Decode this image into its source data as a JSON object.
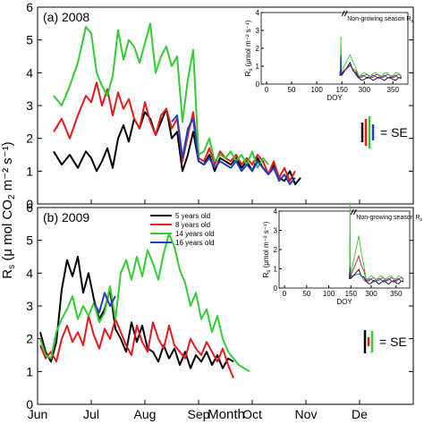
{
  "figure": {
    "y_axis_label": "R",
    "y_axis_label_sub": "s",
    "y_axis_label_rest": " (μ mol CO",
    "y_axis_label_co2sub": "2",
    "y_axis_label_end": " m⁻² s⁻¹)",
    "x_axis_label": "Month",
    "month_ticks": [
      "Jun",
      "Jul",
      "Aug",
      "Sep",
      "Oct",
      "Nov",
      "De"
    ],
    "colors": {
      "5 years old": "#000000",
      "8 years old": "#e41a1c",
      "14 years old": "#33cc33",
      "16 years old": "#1f3fbf"
    }
  },
  "chart_data": [
    {
      "type": "line",
      "panel": "(a)",
      "year": "2008",
      "x_unit": "month_index",
      "xlim": [
        0,
        7
      ],
      "ylim": [
        0,
        6
      ],
      "yticks": [
        0,
        1,
        2,
        3,
        4,
        5,
        6
      ],
      "se_label": "= SE",
      "series": [
        {
          "key": "5 years old",
          "x": [
            0.3,
            0.45,
            0.6,
            0.75,
            0.9,
            1.0,
            1.1,
            1.2,
            1.3,
            1.4,
            1.5,
            1.6,
            1.7,
            1.8,
            1.9,
            2.0,
            2.1,
            2.2,
            2.3,
            2.4,
            2.5,
            2.6,
            2.7,
            2.8,
            2.9,
            3.0,
            3.1,
            3.2,
            3.3,
            3.4,
            3.5,
            3.6,
            3.7,
            3.8,
            3.9,
            4.0,
            4.1,
            4.2,
            4.3,
            4.4,
            4.5,
            4.6,
            4.7,
            4.8,
            4.9
          ],
          "y": [
            1.6,
            1.2,
            1.5,
            1.1,
            1.6,
            1.4,
            1.0,
            1.3,
            1.7,
            1.1,
            2.0,
            2.4,
            1.9,
            2.6,
            2.3,
            2.8,
            2.6,
            2.1,
            2.5,
            2.9,
            2.0,
            2.2,
            1.0,
            1.5,
            2.2,
            1.3,
            1.2,
            1.5,
            1.0,
            1.4,
            1.3,
            1.2,
            1.4,
            1.1,
            1.3,
            1.0,
            1.4,
            1.1,
            0.9,
            1.2,
            0.8,
            0.7,
            1.0,
            0.6,
            0.8
          ]
        },
        {
          "key": "8 years old",
          "x": [
            0.3,
            0.45,
            0.6,
            0.75,
            0.9,
            1.0,
            1.1,
            1.2,
            1.3,
            1.4,
            1.5,
            1.6,
            1.7,
            1.8,
            1.9,
            2.0,
            2.1,
            2.2,
            2.3,
            2.4,
            2.5,
            2.6,
            2.7,
            2.8,
            2.9,
            3.0,
            3.1,
            3.2,
            3.3,
            3.4,
            3.5,
            3.6,
            3.7,
            3.8,
            3.9,
            4.0,
            4.1,
            4.2,
            4.3,
            4.4,
            4.5,
            4.6,
            4.7,
            4.8
          ],
          "y": [
            2.2,
            2.6,
            2.0,
            2.7,
            3.3,
            3.1,
            3.7,
            3.0,
            3.5,
            2.7,
            3.4,
            2.9,
            3.2,
            2.6,
            2.3,
            3.1,
            2.5,
            2.1,
            2.7,
            2.9,
            2.3,
            2.6,
            1.3,
            2.1,
            2.8,
            1.4,
            1.3,
            1.7,
            1.2,
            1.6,
            1.4,
            1.3,
            1.5,
            1.2,
            1.4,
            1.2,
            1.5,
            1.3,
            0.9,
            1.3,
            0.8,
            1.1,
            0.7,
            1.0
          ]
        },
        {
          "key": "14 years old",
          "x": [
            0.3,
            0.45,
            0.6,
            0.75,
            0.9,
            1.0,
            1.1,
            1.2,
            1.3,
            1.4,
            1.5,
            1.6,
            1.7,
            1.8,
            1.9,
            2.0,
            2.1,
            2.2,
            2.3,
            2.4,
            2.5,
            2.6,
            2.7,
            2.8,
            2.9,
            3.0,
            3.1,
            3.2,
            3.3,
            3.4,
            3.5,
            3.6,
            3.7,
            3.8,
            3.9,
            4.0,
            4.1,
            4.2,
            4.3
          ],
          "y": [
            3.3,
            3.0,
            3.6,
            4.3,
            5.4,
            5.2,
            4.0,
            3.6,
            3.3,
            3.9,
            5.3,
            4.4,
            5.0,
            4.8,
            4.3,
            4.9,
            5.5,
            4.0,
            4.5,
            4.8,
            4.2,
            4.5,
            2.5,
            3.8,
            4.7,
            1.5,
            1.6,
            2.0,
            1.3,
            1.5,
            1.4,
            1.6,
            1.3,
            1.5,
            1.2,
            1.6,
            1.1,
            1.4,
            1.2
          ]
        },
        {
          "key": "16 years old",
          "x": [
            2.5,
            2.6,
            2.7,
            2.8,
            2.9,
            3.0,
            3.1,
            3.2,
            3.3,
            3.4,
            3.5,
            3.6,
            3.7,
            3.8,
            3.9,
            4.0,
            4.1,
            4.2,
            4.3,
            4.4,
            4.5,
            4.6,
            4.7,
            4.8
          ],
          "y": [
            2.5,
            2.7,
            1.4,
            2.3,
            2.6,
            1.3,
            1.2,
            1.4,
            1.1,
            1.3,
            1.2,
            1.1,
            1.3,
            1.0,
            1.2,
            1.0,
            1.3,
            1.1,
            0.9,
            1.1,
            0.7,
            0.9,
            0.6,
            0.8
          ]
        }
      ],
      "inset": {
        "xticks": [
          0,
          50,
          100,
          150,
          300,
          350
        ],
        "yticks": [
          0,
          1,
          2,
          3,
          4
        ],
        "ylabel": "R",
        "ylabel_sub": "s",
        "ylabel_rest": " (μmol m⁻² s⁻¹)",
        "xlabel": "DOY",
        "annotation": "Non-growing season R",
        "annotation_sub": "s"
      }
    },
    {
      "type": "line",
      "panel": "(b)",
      "year": "2009",
      "x_unit": "month_index",
      "xlim": [
        0,
        7
      ],
      "ylim": [
        0,
        6
      ],
      "yticks": [
        0,
        1,
        2,
        3,
        4,
        5,
        6
      ],
      "se_label": "= SE",
      "legend": [
        "5 years old",
        "8 years old",
        "14 years old",
        "16 years old"
      ],
      "series": [
        {
          "key": "5 years old",
          "x": [
            0.05,
            0.15,
            0.25,
            0.35,
            0.45,
            0.55,
            0.65,
            0.75,
            0.85,
            0.95,
            1.05,
            1.15,
            1.25,
            1.35,
            1.45,
            1.55,
            1.65,
            1.75,
            1.85,
            1.95,
            2.05,
            2.15,
            2.25,
            2.35,
            2.45,
            2.55,
            2.65,
            2.75,
            2.85,
            2.95,
            3.05,
            3.15,
            3.25,
            3.35,
            3.45,
            3.55,
            3.65
          ],
          "y": [
            2.2,
            1.6,
            1.3,
            1.9,
            3.5,
            4.4,
            3.9,
            4.5,
            3.4,
            4.0,
            3.2,
            2.6,
            2.9,
            3.5,
            2.3,
            2.0,
            1.6,
            2.5,
            1.9,
            2.4,
            1.7,
            1.6,
            1.3,
            1.8,
            1.4,
            1.7,
            1.2,
            1.6,
            1.1,
            1.5,
            1.3,
            1.6,
            1.2,
            1.5,
            1.1,
            1.4,
            1.3
          ]
        },
        {
          "key": "8 years old",
          "x": [
            0.05,
            0.15,
            0.25,
            0.35,
            0.45,
            0.55,
            0.65,
            0.75,
            0.85,
            0.95,
            1.05,
            1.15,
            1.25,
            1.35,
            1.45,
            1.55,
            1.65,
            1.75,
            1.85,
            1.95,
            2.05,
            2.15,
            2.25,
            2.35,
            2.45,
            2.55,
            2.65,
            2.75,
            2.85,
            2.95,
            3.05,
            3.15,
            3.25,
            3.35,
            3.45,
            3.55,
            3.65
          ],
          "y": [
            1.8,
            1.4,
            1.6,
            1.3,
            2.0,
            2.4,
            1.9,
            2.2,
            1.8,
            2.7,
            2.1,
            1.7,
            2.3,
            2.0,
            2.6,
            2.2,
            1.8,
            1.5,
            2.4,
            1.9,
            1.6,
            2.5,
            2.0,
            1.7,
            2.4,
            1.8,
            1.6,
            1.4,
            2.0,
            1.7,
            1.5,
            1.9,
            1.6,
            1.3,
            1.7,
            1.2,
            0.8
          ]
        },
        {
          "key": "14 years old",
          "x": [
            0.05,
            0.15,
            0.25,
            0.35,
            0.45,
            0.55,
            0.65,
            0.75,
            0.85,
            0.95,
            1.05,
            1.15,
            1.25,
            1.35,
            1.45,
            1.55,
            1.65,
            1.75,
            1.85,
            1.95,
            2.05,
            2.15,
            2.25,
            2.35,
            2.45,
            2.55,
            2.65,
            2.75,
            2.85,
            2.95,
            3.05,
            3.15,
            3.25,
            3.35,
            3.45,
            3.55,
            3.65,
            3.75,
            3.85,
            3.95
          ],
          "y": [
            2.0,
            1.5,
            1.4,
            2.2,
            2.6,
            2.9,
            3.3,
            2.6,
            3.0,
            2.7,
            3.1,
            2.5,
            2.8,
            3.6,
            2.6,
            4.0,
            4.4,
            3.8,
            4.5,
            3.9,
            4.7,
            4.3,
            3.8,
            4.6,
            5.2,
            4.8,
            4.1,
            3.7,
            3.0,
            3.4,
            2.6,
            2.9,
            2.2,
            2.7,
            2.0,
            1.6,
            1.4,
            1.2,
            1.1,
            1.0
          ]
        },
        {
          "key": "16 years old",
          "x": [
            1.05,
            1.15,
            1.25,
            1.35,
            1.45
          ],
          "y": [
            3.1,
            2.8,
            3.4,
            3.0,
            3.3
          ]
        }
      ],
      "inset": {
        "xticks": [
          0,
          50,
          100,
          150,
          300,
          350
        ],
        "yticks": [
          0,
          1,
          2,
          3,
          4
        ],
        "ylabel": "R",
        "ylabel_sub": "s",
        "ylabel_rest": " (μmol m⁻² s⁻¹)",
        "xlabel": "DOY",
        "annotation": "Non-growing season R",
        "annotation_sub": "s"
      }
    }
  ]
}
